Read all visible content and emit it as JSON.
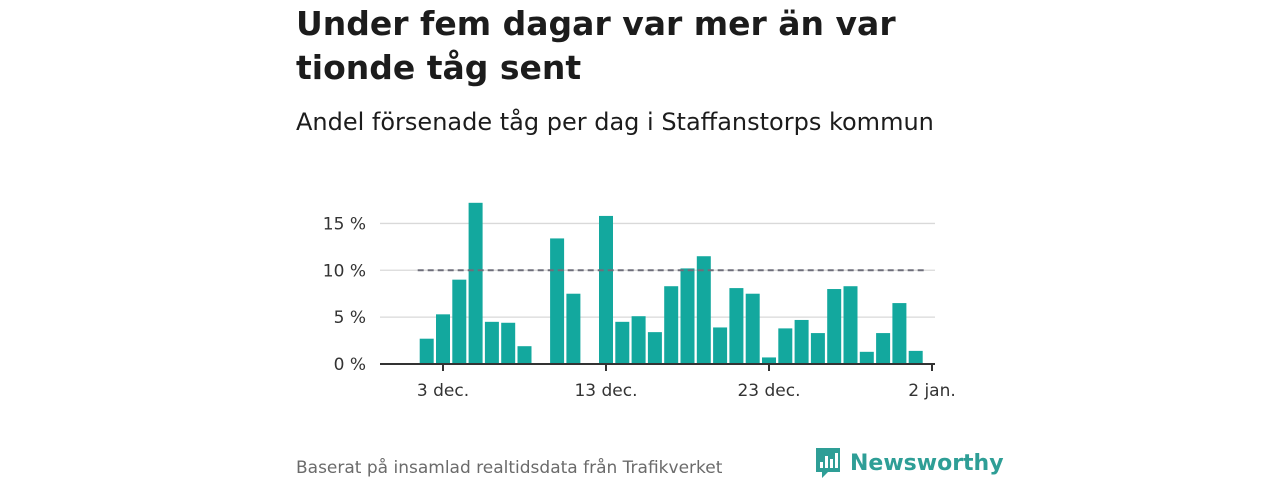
{
  "title": "Under fem dagar var mer än var tionde tåg sent",
  "subtitle": "Andel försenade tåg per dag i Staffanstorps kommun",
  "source": "Baserat på insamlad realtidsdata från Trafikverket",
  "brand": {
    "name": "Newsworthy",
    "icon": "newsworthy-logo-icon",
    "color": "#2e9e96"
  },
  "colors": {
    "bar": "#13a89e",
    "reference_line": "#6e6e7a",
    "grid": "#d9d9d9",
    "axis": "#333333"
  },
  "chart_data": {
    "type": "bar",
    "title": "Under fem dagar var mer än var tionde tåg sent",
    "subtitle": "Andel försenade tåg per dag i Staffanstorps kommun",
    "x_axis": {
      "type": "date",
      "range": [
        "2019-12-01",
        "2020-01-02"
      ],
      "tick_labels": [
        {
          "date": "2019-12-03",
          "label": "3 dec."
        },
        {
          "date": "2019-12-13",
          "label": "13 dec."
        },
        {
          "date": "2019-12-23",
          "label": "23 dec."
        },
        {
          "date": "2020-01-02",
          "label": "2 jan."
        }
      ]
    },
    "y_axis": {
      "unit": "%",
      "ylim": [
        0,
        17.5
      ],
      "ticks": [
        0,
        5,
        10,
        15
      ],
      "tick_labels": [
        "0 %",
        "5 %",
        "10 %",
        "15 %"
      ]
    },
    "grid": true,
    "reference_line": {
      "value": 10,
      "style": "dashed"
    },
    "series": [
      {
        "points": [
          {
            "x": "2019-12-02",
            "y": 2.7
          },
          {
            "x": "2019-12-03",
            "y": 5.3
          },
          {
            "x": "2019-12-04",
            "y": 9.0
          },
          {
            "x": "2019-12-05",
            "y": 17.2
          },
          {
            "x": "2019-12-06",
            "y": 4.5
          },
          {
            "x": "2019-12-07",
            "y": 4.4
          },
          {
            "x": "2019-12-08",
            "y": 1.9
          },
          {
            "x": "2019-12-10",
            "y": 13.4
          },
          {
            "x": "2019-12-11",
            "y": 7.5
          },
          {
            "x": "2019-12-13",
            "y": 15.8
          },
          {
            "x": "2019-12-14",
            "y": 4.5
          },
          {
            "x": "2019-12-15",
            "y": 5.1
          },
          {
            "x": "2019-12-16",
            "y": 3.4
          },
          {
            "x": "2019-12-17",
            "y": 8.3
          },
          {
            "x": "2019-12-18",
            "y": 10.2
          },
          {
            "x": "2019-12-19",
            "y": 11.5
          },
          {
            "x": "2019-12-20",
            "y": 3.9
          },
          {
            "x": "2019-12-21",
            "y": 8.1
          },
          {
            "x": "2019-12-22",
            "y": 7.5
          },
          {
            "x": "2019-12-23",
            "y": 0.7
          },
          {
            "x": "2019-12-24",
            "y": 3.8
          },
          {
            "x": "2019-12-25",
            "y": 4.7
          },
          {
            "x": "2019-12-26",
            "y": 3.3
          },
          {
            "x": "2019-12-27",
            "y": 8.0
          },
          {
            "x": "2019-12-28",
            "y": 8.3
          },
          {
            "x": "2019-12-29",
            "y": 1.3
          },
          {
            "x": "2019-12-30",
            "y": 3.3
          },
          {
            "x": "2019-12-31",
            "y": 6.5
          },
          {
            "x": "2020-01-01",
            "y": 1.4
          }
        ]
      }
    ]
  }
}
